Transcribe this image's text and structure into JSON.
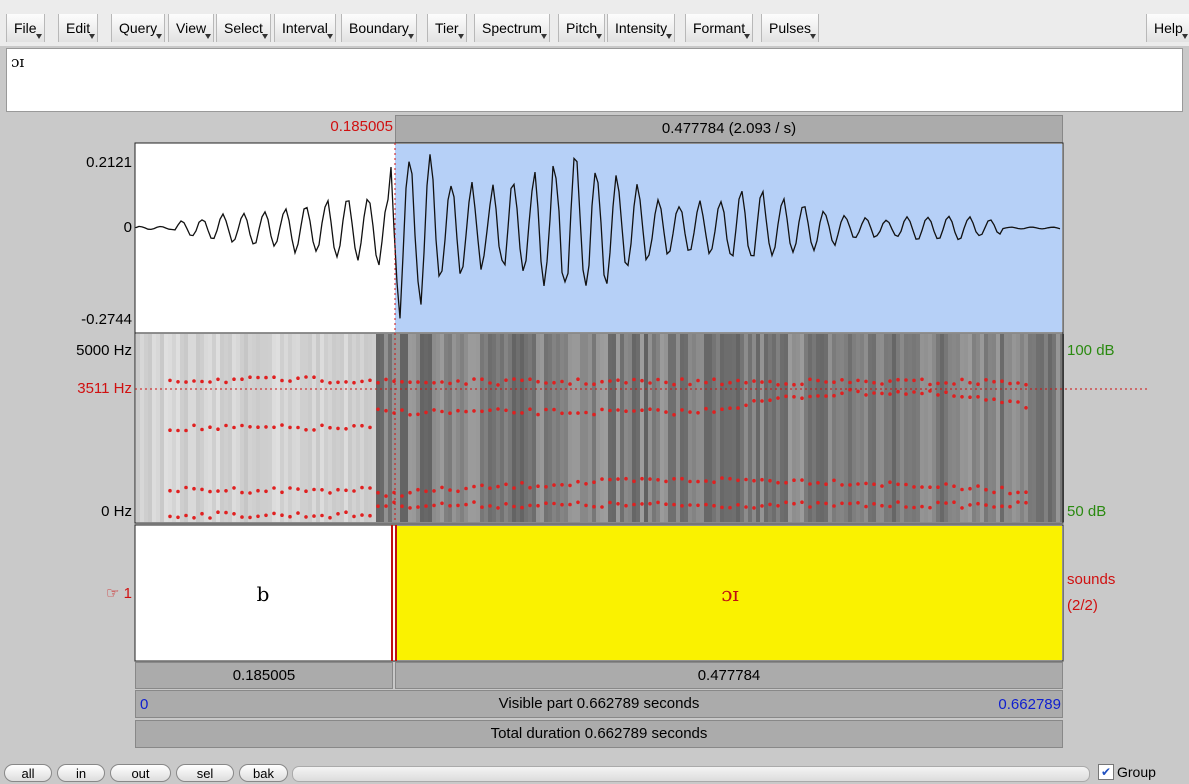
{
  "menu": [
    "File",
    "Edit",
    "Query",
    "View",
    "Select",
    "Interval",
    "Boundary",
    "Tier",
    "Spectrum",
    "Pitch",
    "Intensity",
    "Formant",
    "Pulses"
  ],
  "help": "Help",
  "text_field": "ɔɪ",
  "selection": {
    "start": "0.185005",
    "duration": "0.477784 (2.093 / s)"
  },
  "waveform": {
    "max": "0.2121",
    "zero": "0",
    "min": "-0.2744"
  },
  "spectrogram": {
    "top": "5000 Hz",
    "cursor": "3511 Hz",
    "bottom": "0 Hz",
    "db_top": "100 dB",
    "db_bottom": "50 dB"
  },
  "tier": {
    "marker": "☞ 1",
    "name": "sounds",
    "count": "(2/2)",
    "intervals": [
      "b",
      "ɔɪ"
    ]
  },
  "interval_durations": [
    "0.185005",
    "0.477784"
  ],
  "visible": {
    "start": "0",
    "label": "Visible part 0.662789 seconds",
    "end": "0.662789"
  },
  "total": "Total duration 0.662789 seconds",
  "buttons": [
    "all",
    "in",
    "out",
    "sel",
    "bak"
  ],
  "group": "Group"
}
